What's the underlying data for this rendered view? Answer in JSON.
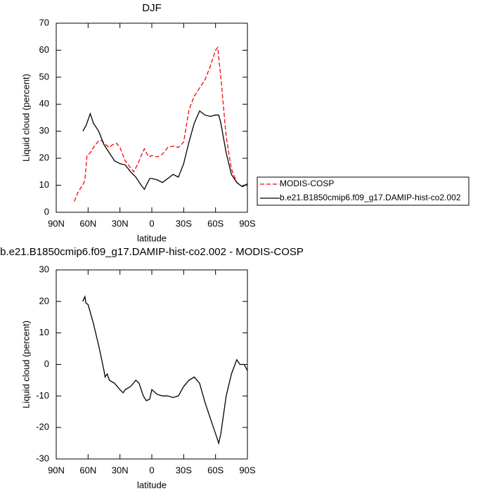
{
  "chart_data": [
    {
      "type": "line",
      "title": "DJF",
      "xlabel": "latitude",
      "ylabel": "Liquid cloud (percent)",
      "xlim": [
        90,
        -90
      ],
      "xticks": [
        {
          "value": 90,
          "label": "90N"
        },
        {
          "value": 60,
          "label": "60N"
        },
        {
          "value": 30,
          "label": "30N"
        },
        0,
        {
          "value": -30,
          "label": "30S"
        },
        {
          "value": -60,
          "label": "60S"
        },
        {
          "value": -90,
          "label": "90S"
        }
      ],
      "ylim": [
        0,
        70
      ],
      "yticks": [
        0,
        10,
        20,
        30,
        40,
        50,
        60,
        70
      ],
      "legend": "right",
      "series": [
        {
          "name": "MODIS-COSP",
          "color": "#ff0000",
          "dashed": true,
          "x": [
            73,
            70,
            67,
            65,
            63,
            61,
            58,
            55,
            50,
            47,
            45,
            40,
            37,
            33,
            30,
            25,
            20,
            17,
            13,
            10,
            7,
            5,
            3,
            0,
            -5,
            -10,
            -15,
            -20,
            -25,
            -30,
            -35,
            -40,
            -45,
            -50,
            -55,
            -60,
            -62,
            -65,
            -70,
            -75,
            -80,
            -85,
            -90
          ],
          "values": [
            4,
            7,
            9,
            10,
            12,
            21,
            22,
            24,
            26.5,
            26.5,
            25.5,
            24,
            25,
            25.5,
            24,
            19,
            16.5,
            15,
            18,
            21,
            23.5,
            22,
            20.5,
            21,
            20.5,
            21.5,
            24,
            24.5,
            24,
            26,
            38,
            43,
            46,
            49,
            54,
            60,
            61,
            50,
            28,
            16,
            11,
            9.5,
            10
          ]
        },
        {
          "name": "b.e21.B1850cmip6.f09_g17.DAMIP-hist-co2.002",
          "color": "#000000",
          "dashed": false,
          "x": [
            65,
            62,
            58,
            55,
            50,
            45,
            40,
            35,
            30,
            25,
            20,
            15,
            10,
            7,
            2,
            0,
            -5,
            -10,
            -15,
            -20,
            -25,
            -30,
            -35,
            -40,
            -45,
            -50,
            -55,
            -60,
            -63,
            -65,
            -70,
            -75,
            -80,
            -85,
            -90
          ],
          "values": [
            30,
            32,
            36.5,
            33,
            30,
            25,
            22,
            19,
            18,
            17.5,
            15,
            13,
            10,
            8.5,
            12.5,
            12.5,
            12,
            11,
            12.5,
            14,
            13,
            18,
            26,
            33,
            37.5,
            36,
            35.5,
            36,
            36,
            33,
            22,
            14,
            11,
            9.5,
            10.5
          ]
        }
      ]
    },
    {
      "type": "line",
      "title": "b.e21.B1850cmip6.f09_g17.DAMIP-hist-co2.002 - MODIS-COSP",
      "xlabel": "latitude",
      "ylabel": "Liquid cloud (percent)",
      "xlim": [
        90,
        -90
      ],
      "xticks": [
        {
          "value": 90,
          "label": "90N"
        },
        {
          "value": 60,
          "label": "60N"
        },
        {
          "value": 30,
          "label": "30N"
        },
        0,
        {
          "value": -30,
          "label": "30S"
        },
        {
          "value": -60,
          "label": "60S"
        },
        {
          "value": -90,
          "label": "90S"
        }
      ],
      "ylim": [
        -30,
        30
      ],
      "yticks": [
        -30,
        -20,
        -10,
        0,
        10,
        20,
        30
      ],
      "series": [
        {
          "color": "#000000",
          "dashed": false,
          "x": [
            65,
            63,
            62,
            60,
            55,
            50,
            45,
            44,
            42,
            40,
            35,
            30,
            27,
            25,
            20,
            15,
            12,
            8,
            5,
            2,
            0,
            -5,
            -10,
            -15,
            -20,
            -25,
            -30,
            -35,
            -40,
            -45,
            -50,
            -55,
            -60,
            -63,
            -65,
            -70,
            -75,
            -80,
            -83,
            -87,
            -90
          ],
          "values": [
            20,
            21.5,
            19.5,
            19,
            13,
            6,
            -2,
            -4,
            -3,
            -5,
            -6,
            -8,
            -9,
            -8,
            -7,
            -5,
            -6,
            -10,
            -11.5,
            -11,
            -8,
            -9.5,
            -10,
            -10,
            -10.5,
            -10,
            -7,
            -5,
            -4,
            -6,
            -12,
            -17,
            -22,
            -25,
            -22,
            -10,
            -3,
            1.5,
            0,
            0,
            -2
          ]
        }
      ]
    }
  ]
}
